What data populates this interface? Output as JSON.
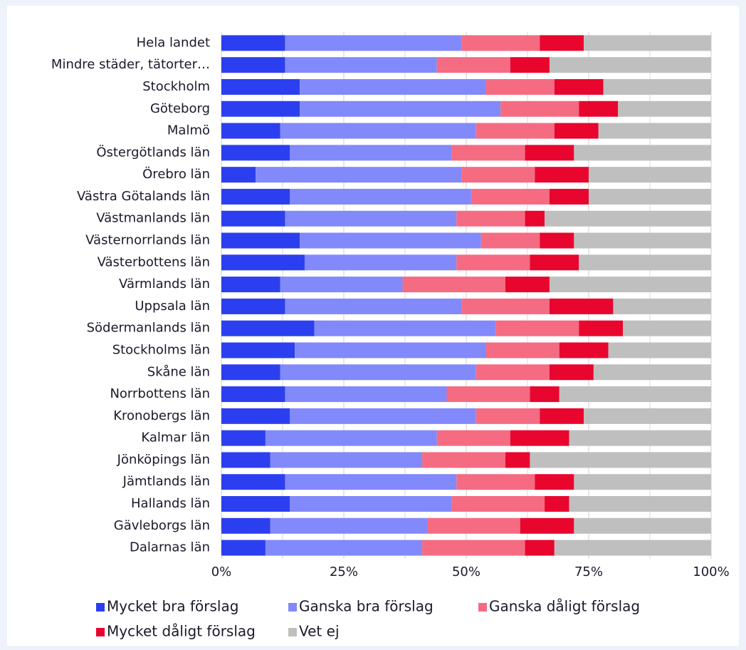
{
  "chart_data": {
    "type": "stacked_barh",
    "categories": [
      "Hela landet",
      "Mindre städer, tätorter…",
      "Stockholm",
      "Göteborg",
      "Malmö",
      "Östergötlands län",
      "Örebro län",
      "Västra Götalands län",
      "Västmanlands län",
      "Västernorrlands län",
      "Västerbottens län",
      "Värmlands län",
      "Uppsala län",
      "Södermanlands län",
      "Stockholms län",
      "Skåne län",
      "Norrbottens län",
      "Kronobergs län",
      "Kalmar län",
      "Jönköpings län",
      "Jämtlands län",
      "Hallands län",
      "Gävleborgs län",
      "Dalarnas län"
    ],
    "series": [
      {
        "name": "Mycket bra förslag",
        "color": "#2b3ff0",
        "values": [
          13,
          13,
          16,
          16,
          12,
          14,
          7,
          14,
          13,
          16,
          17,
          12,
          13,
          19,
          15,
          12,
          13,
          14,
          9,
          10,
          13,
          14,
          10,
          9
        ]
      },
      {
        "name": "Ganska bra förslag",
        "color": "#8289fb",
        "values": [
          36,
          31,
          38,
          41,
          40,
          33,
          42,
          37,
          35,
          37,
          31,
          25,
          36,
          37,
          39,
          40,
          33,
          38,
          35,
          31,
          35,
          33,
          32,
          32
        ]
      },
      {
        "name": "Ganska dåligt förslag",
        "color": "#f56b82",
        "values": [
          16,
          15,
          14,
          16,
          16,
          15,
          15,
          16,
          14,
          12,
          15,
          21,
          18,
          17,
          15,
          15,
          17,
          13,
          15,
          17,
          16,
          19,
          19,
          21
        ]
      },
      {
        "name": "Mycket dåligt förslag",
        "color": "#e8062e",
        "values": [
          9,
          8,
          10,
          8,
          9,
          10,
          11,
          8,
          4,
          7,
          10,
          9,
          13,
          9,
          10,
          9,
          6,
          9,
          12,
          5,
          8,
          5,
          11,
          6
        ]
      },
      {
        "name": "Vet ej",
        "color": "#bfbfbf",
        "values": [
          26,
          33,
          22,
          19,
          23,
          28,
          25,
          25,
          34,
          28,
          27,
          33,
          20,
          18,
          21,
          24,
          31,
          26,
          29,
          37,
          28,
          29,
          28,
          32
        ]
      }
    ],
    "xlim": [
      0,
      100
    ],
    "xticks": [
      {
        "value": 0,
        "label": "0%"
      },
      {
        "value": 25,
        "label": "25%"
      },
      {
        "value": 50,
        "label": "50%"
      },
      {
        "value": 75,
        "label": "75%"
      },
      {
        "value": 100,
        "label": "100%"
      }
    ],
    "minor_xticks": [
      12.5,
      37.5,
      62.5,
      87.5
    ],
    "grid": true,
    "legend": "bottom"
  }
}
